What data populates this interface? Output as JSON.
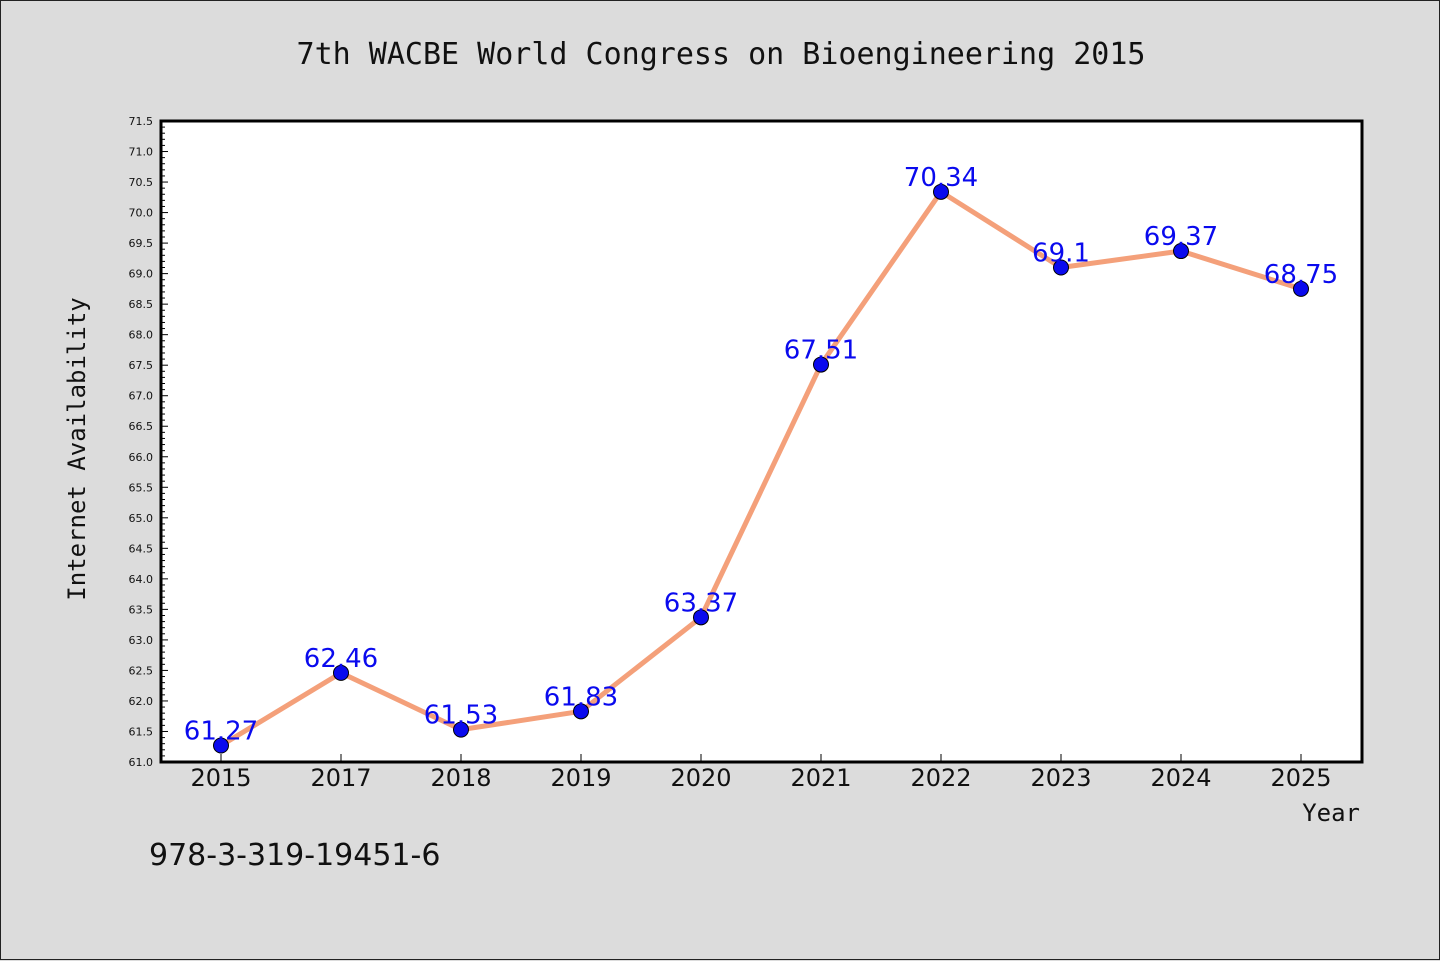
{
  "chart_data": {
    "type": "line",
    "title": "7th WACBE World Congress on Bioengineering 2015",
    "xlabel": "Year",
    "ylabel": "Internet Availability",
    "categories": [
      "2015",
      "2017",
      "2018",
      "2019",
      "2020",
      "2021",
      "2022",
      "2023",
      "2024",
      "2025"
    ],
    "values": [
      61.27,
      62.46,
      61.53,
      61.83,
      63.37,
      67.51,
      70.34,
      69.1,
      69.37,
      68.75
    ],
    "data_labels": [
      "61.27",
      "62.46",
      "61.53",
      "61.83",
      "63.37",
      "67.51",
      "70.34",
      "69.1",
      "69.37",
      "68.75"
    ],
    "ylim": [
      61.0,
      71.5
    ],
    "yticks": [
      "61.0",
      "61.5",
      "62.0",
      "62.5",
      "63.0",
      "63.5",
      "64.0",
      "64.5",
      "65.0",
      "65.5",
      "66.0",
      "66.5",
      "67.0",
      "67.5",
      "68.0",
      "68.5",
      "69.0",
      "69.5",
      "70.0",
      "70.5",
      "71.0",
      "71.5"
    ],
    "grid": false,
    "colors": {
      "line": "#f4a07a",
      "marker": "#0a0aee",
      "marker_edge": "#000000",
      "label": "#0a0aee",
      "plot_bg": "#ffffff",
      "figure_bg": "#dcdcdc"
    }
  },
  "footer": {
    "isbn": "978-3-319-19451-6"
  }
}
